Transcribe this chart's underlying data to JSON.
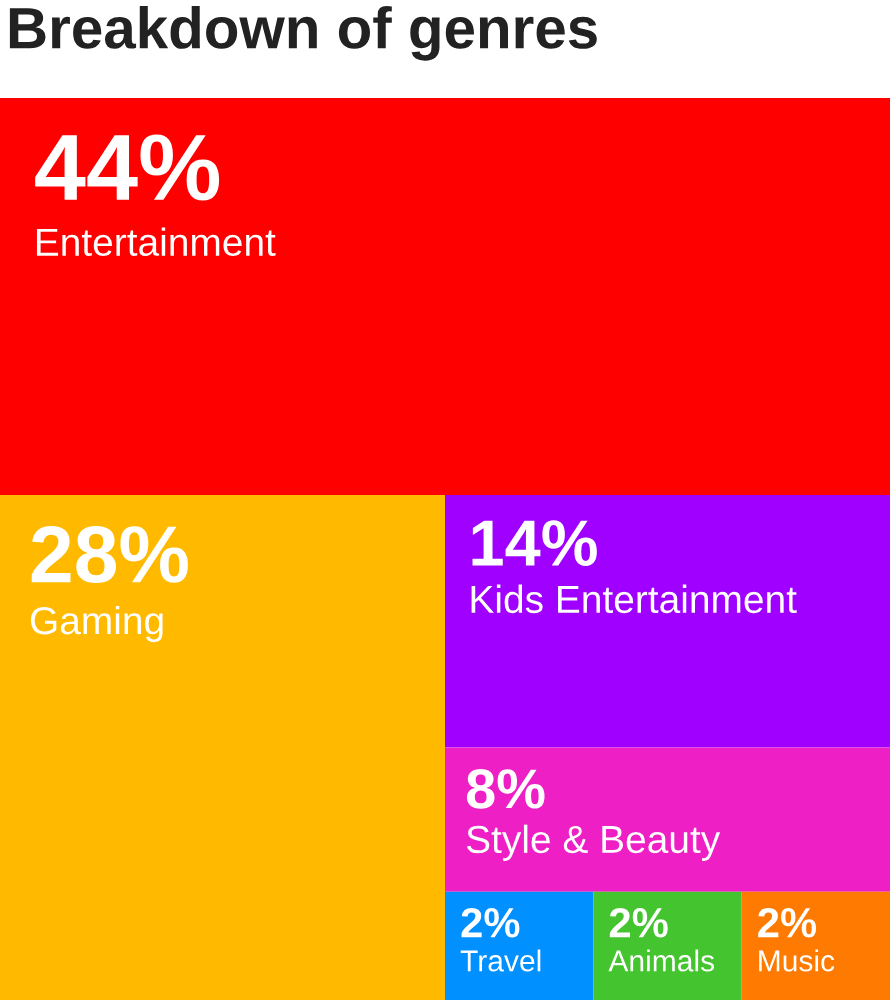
{
  "chart_data": {
    "type": "other",
    "title": "Breakdown of genres",
    "categories": [
      "Entertainment",
      "Gaming",
      "Kids Entertainment",
      "Style & Beauty",
      "Travel",
      "Animals",
      "Music"
    ],
    "values": [
      44,
      28,
      14,
      8,
      2,
      2,
      2
    ],
    "value_labels": [
      "44%",
      "28%",
      "14%",
      "8%",
      "2%",
      "2%",
      "2%"
    ],
    "colors": [
      "#ff0000",
      "#ffba00",
      "#a000ff",
      "#ee20c5",
      "#0090ff",
      "#44c42e",
      "#ff7a00"
    ]
  }
}
